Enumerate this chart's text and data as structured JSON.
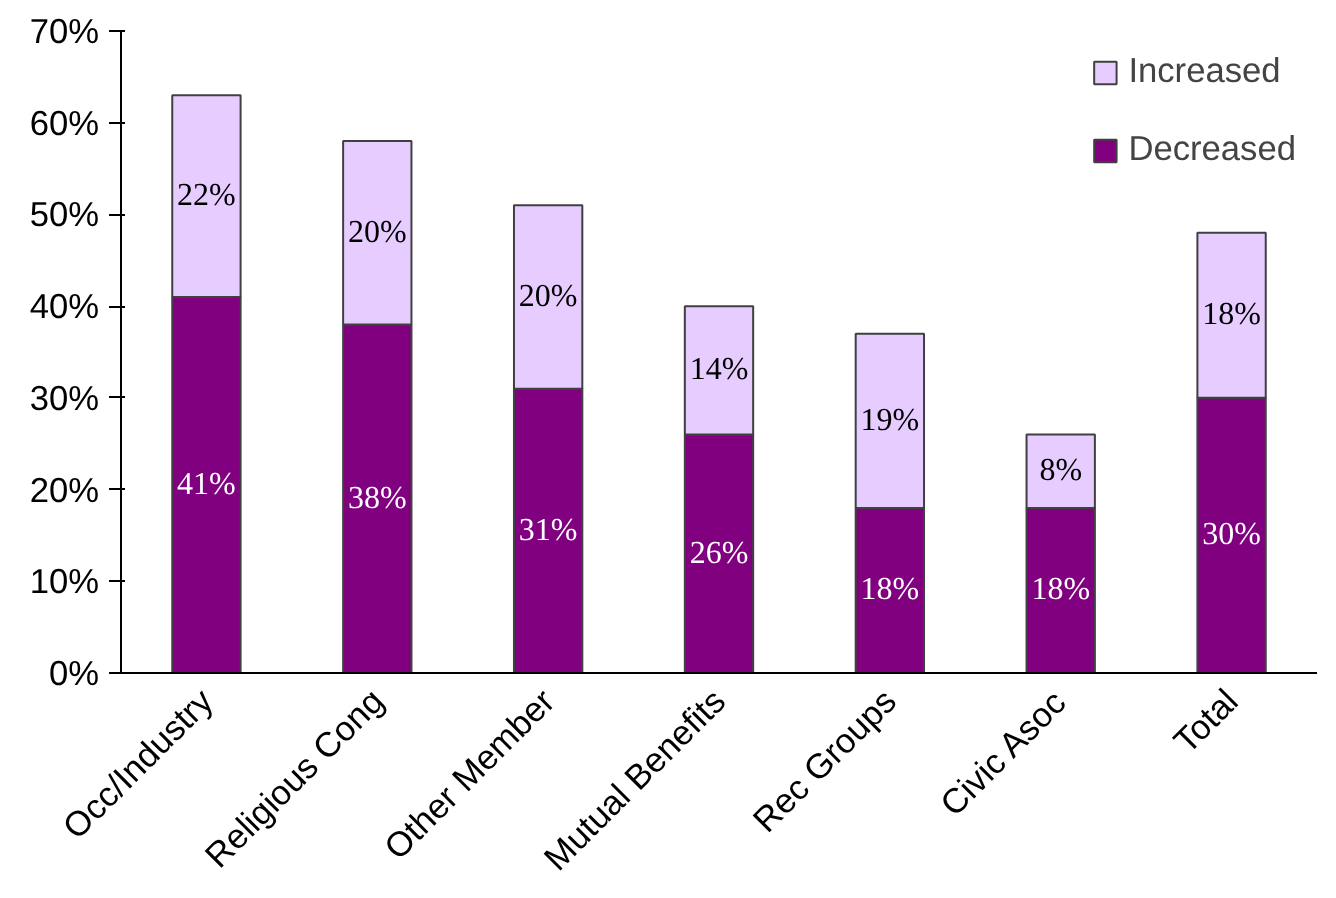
{
  "chart_data": {
    "type": "bar",
    "stacked": true,
    "categories": [
      "Occ/Industry",
      "Religious Cong",
      "Other Member",
      "Mutual Benefits",
      "Rec Groups",
      "Civic Asoc",
      "Total"
    ],
    "series": [
      {
        "name": "Decreased",
        "color": "#800080",
        "values": [
          41,
          38,
          31,
          26,
          18,
          18,
          30
        ],
        "value_labels": [
          "41%",
          "38%",
          "31%",
          "26%",
          "18%",
          "18%",
          "30%"
        ]
      },
      {
        "name": "Increased",
        "color": "#e6ccff",
        "values": [
          22,
          20,
          20,
          14,
          19,
          8,
          18
        ],
        "value_labels": [
          "22%",
          "20%",
          "20%",
          "14%",
          "19%",
          "8%",
          "18%"
        ]
      }
    ],
    "ylim": [
      0,
      70
    ],
    "yticks": [
      {
        "value": 0,
        "label": "0%"
      },
      {
        "value": 10,
        "label": "10%"
      },
      {
        "value": 20,
        "label": "20%"
      },
      {
        "value": 30,
        "label": "30%"
      },
      {
        "value": 40,
        "label": "40%"
      },
      {
        "value": 50,
        "label": "50%"
      },
      {
        "value": 60,
        "label": "60%"
      },
      {
        "value": 70,
        "label": "70%"
      }
    ],
    "grid": false,
    "legend": "top right"
  }
}
